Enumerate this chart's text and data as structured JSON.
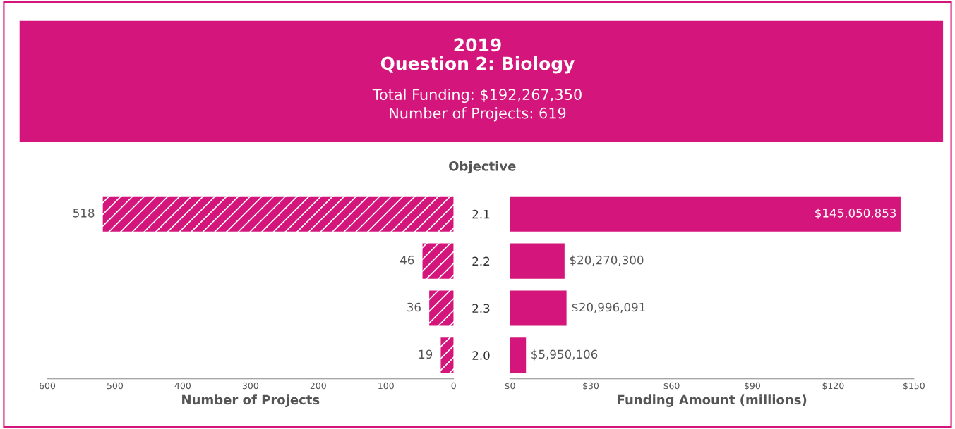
{
  "chart_data": [
    {
      "type": "bar",
      "orientation": "horizontal",
      "title": "2019\nQuestion 2: Biology",
      "subtitle": "Total Funding: $192,267,350\nNumber of Projects: 619",
      "categories": [
        "2.1",
        "2.2",
        "2.3",
        "2.0"
      ],
      "values": [
        518,
        46,
        36,
        19
      ],
      "color": "#d4157b",
      "xlim": [
        600,
        0
      ],
      "xticks": [
        600,
        500,
        400,
        300,
        200,
        100,
        0
      ],
      "xlabel": "Number of Projects",
      "data_labels": true,
      "tick_labels": "x",
      "grid": false,
      "legend": false
    },
    {
      "type": "bar",
      "orientation": "horizontal",
      "categories": [
        "2.1",
        "2.2",
        "2.3",
        "2.0"
      ],
      "values": [
        145.050853,
        20.2703,
        20.996091,
        5.950106
      ],
      "color": "#d4157b",
      "annotations": [
        "Objective",
        {
          "text": "$145,050,853",
          "x": 145.050853,
          "y": "2.1"
        },
        {
          "text": "$20,270,300",
          "x": 20.2703,
          "y": "2.2"
        },
        {
          "text": "$20,996,091",
          "x": 20.996091,
          "y": "2.3"
        },
        {
          "text": "$5,950,106",
          "x": 5.950106,
          "y": "2.0"
        }
      ],
      "xlim": [
        0,
        150
      ],
      "xticks": [
        {
          "value": 0,
          "label": "$0"
        },
        {
          "value": 30,
          "label": "$30"
        },
        {
          "value": 60,
          "label": "$60"
        },
        {
          "value": 90,
          "label": "$90"
        },
        {
          "value": 120,
          "label": "$120"
        },
        {
          "value": 150,
          "label": "$150"
        }
      ],
      "xlabel": "Funding Amount (millions)",
      "grid": false,
      "legend": false
    }
  ]
}
